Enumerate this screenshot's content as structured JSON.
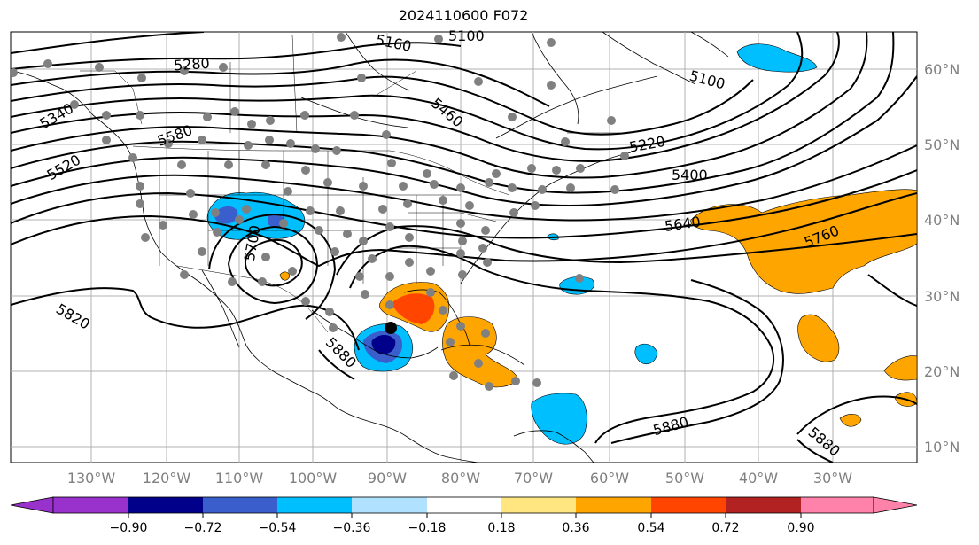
{
  "title": "2024110600 F072",
  "longitude_labels": [
    "130°W",
    "120°W",
    "110°W",
    "100°W",
    "90°W",
    "80°W",
    "70°W",
    "60°W",
    "50°W",
    "40°W",
    "30°W"
  ],
  "latitude_labels": [
    "60°N",
    "50°N",
    "40°N",
    "30°N",
    "20°N",
    "10°N"
  ],
  "contour_labels": [
    "5160",
    "5100",
    "5280",
    "5340",
    "5460",
    "5580",
    "5520",
    "5220",
    "5400",
    "5100",
    "5640",
    "5760",
    "5700",
    "5820",
    "5880",
    "5880",
    "5880"
  ],
  "colorbar": {
    "ticks": [
      "−0.90",
      "−0.72",
      "−0.54",
      "−0.36",
      "−0.18",
      "0.18",
      "0.36",
      "0.54",
      "0.72",
      "0.90"
    ],
    "colors": [
      "#9932cc",
      "#00008b",
      "#3a5fcd",
      "#00bfff",
      "#b0e2ff",
      "#ffffff",
      "#ffe680",
      "#ffa500",
      "#ff4500",
      "#b22222",
      "#ff82ab"
    ]
  },
  "colors": {
    "positive_orange": "#ffa500",
    "positive_red": "#ff4500",
    "negative_light_blue": "#00bfff",
    "negative_blue": "#3a5fcd",
    "negative_dark": "#00008b",
    "station_dot": "#808080",
    "grid": "#b0b0b0"
  }
}
